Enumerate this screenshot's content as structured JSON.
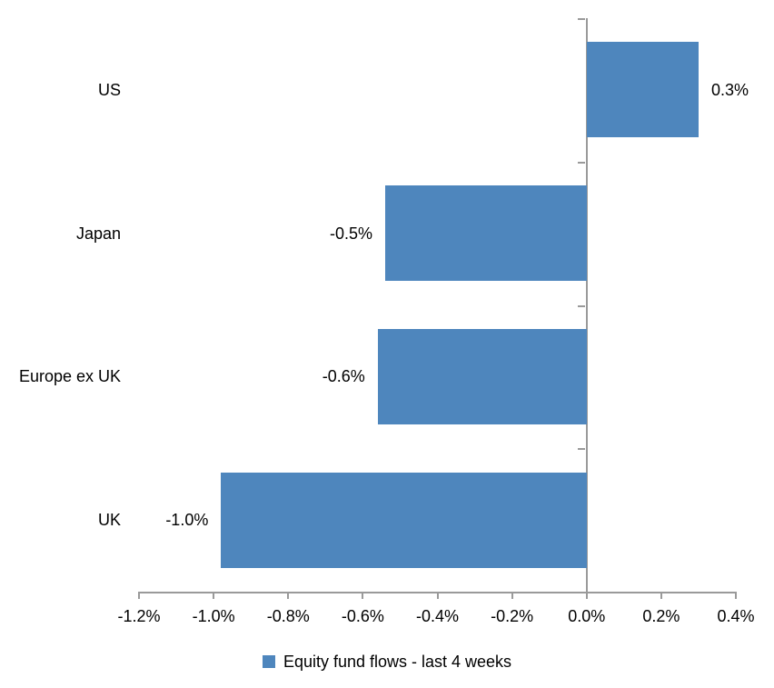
{
  "chart_data": {
    "type": "bar",
    "orientation": "horizontal",
    "title": "",
    "categories": [
      "US",
      "Japan",
      "Europe ex UK",
      "UK"
    ],
    "series": [
      {
        "name": "Equity fund flows - last 4 weeks",
        "values": [
          0.3,
          -0.5,
          -0.6,
          -1.0
        ],
        "plotted_values": [
          0.3,
          -0.54,
          -0.56,
          -0.98
        ],
        "data_labels": [
          "0.3%",
          "-0.5%",
          "-0.6%",
          "-1.0%"
        ]
      }
    ],
    "xlabel": "",
    "ylabel": "",
    "xlim": [
      -1.2,
      0.4
    ],
    "x_tick_step": 0.2,
    "x_tick_labels": [
      "-1.2%",
      "-1.0%",
      "-0.8%",
      "-0.6%",
      "-0.4%",
      "-0.2%",
      "0.0%",
      "0.2%",
      "0.4%"
    ],
    "grid": false,
    "data_label_position": "outside-end",
    "legend_position": "bottom",
    "colors": {
      "bar": "#4e86bd",
      "axis": "#9a9a9a",
      "text": "#000000",
      "background": "#ffffff"
    }
  }
}
